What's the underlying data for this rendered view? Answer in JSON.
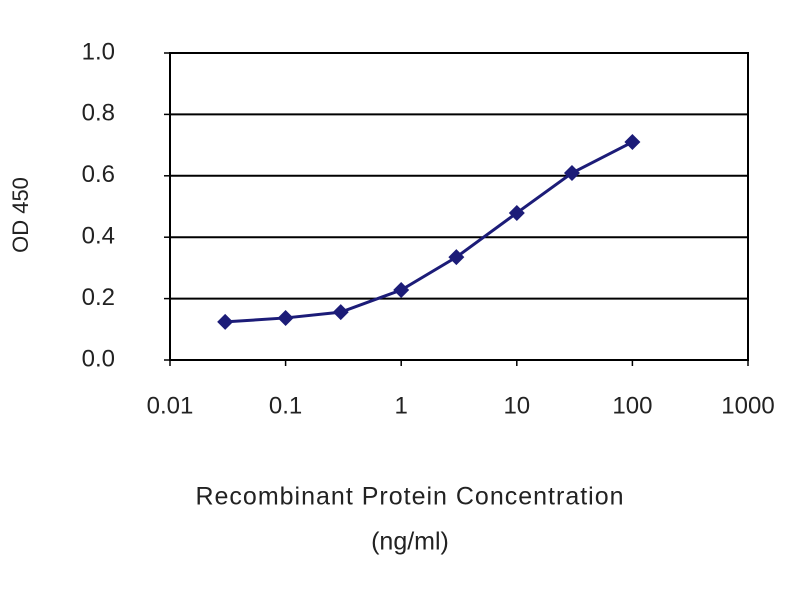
{
  "chart_data": {
    "type": "line",
    "ylabel": "OD 450",
    "xlabel": [
      "Recombinant Protein Concentration",
      "(ng/ml)"
    ],
    "x": [
      0.03,
      0.1,
      0.3,
      1,
      3,
      10,
      30,
      100
    ],
    "series": [
      {
        "color": "#1c1c78",
        "values": [
          0.124,
          0.137,
          0.156,
          0.228,
          0.335,
          0.479,
          0.609,
          0.71
        ]
      }
    ],
    "xscale": "log",
    "xlim": [
      0.01,
      1000
    ],
    "xticks": [
      0.01,
      0.1,
      1,
      10,
      100,
      1000
    ],
    "ylim": [
      0,
      1
    ],
    "yticks": [
      {
        "value": 0,
        "label": "0.0"
      },
      0.2,
      0.4,
      0.6,
      0.8,
      {
        "value": 1,
        "label": "1.0"
      }
    ],
    "grid": true
  }
}
